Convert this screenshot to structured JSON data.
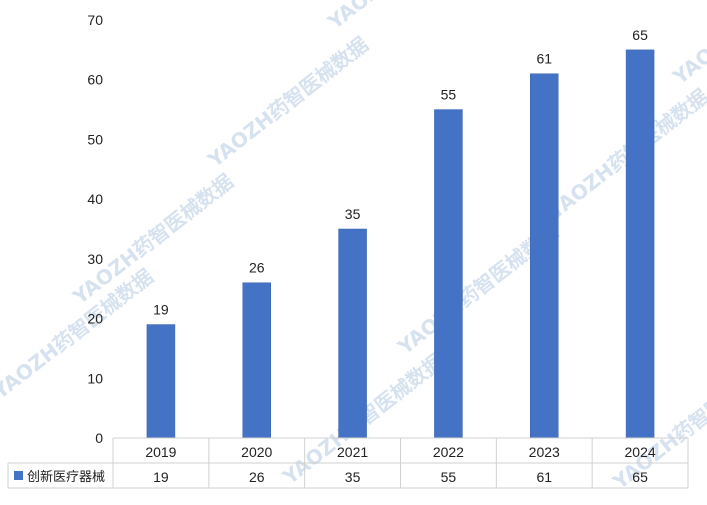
{
  "chart_data": {
    "type": "bar",
    "categories": [
      "2019",
      "2020",
      "2021",
      "2022",
      "2023",
      "2024"
    ],
    "series": [
      {
        "name": "创新医疗器械",
        "values": [
          19,
          26,
          35,
          55,
          61,
          65
        ]
      }
    ],
    "ylim": [
      0,
      70
    ],
    "yticks": [
      0,
      10,
      20,
      30,
      40,
      50,
      60,
      70
    ],
    "grid": false,
    "data_table": true,
    "legend_placement": "data-table-row-header",
    "bar_color": "#4472c4",
    "xlabel": "",
    "ylabel": ""
  },
  "watermark": {
    "text": "YAOZH药智医械数据",
    "color": "#b8cce4"
  }
}
